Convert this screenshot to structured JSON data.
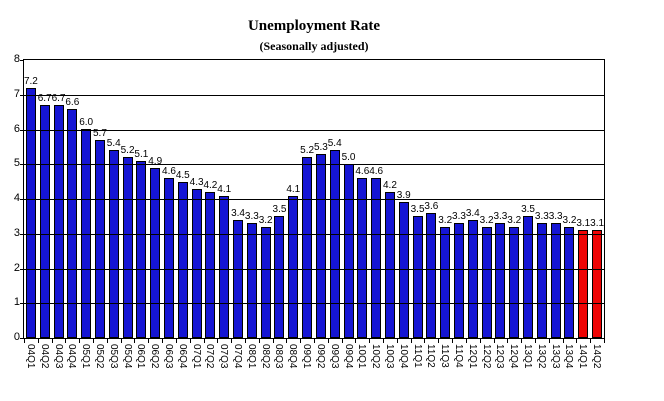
{
  "chart_data": {
    "type": "bar",
    "title": "Unemployment Rate",
    "subtitle": "(Seasonally adjusted)",
    "categories": [
      "04Q1",
      "04Q2",
      "04Q3",
      "04Q4",
      "05Q1",
      "05Q2",
      "05Q3",
      "05Q4",
      "06Q1",
      "06Q2",
      "06Q3",
      "06Q4",
      "07Q1",
      "07Q2",
      "07Q3",
      "07Q4",
      "08Q1",
      "08Q2",
      "08Q3",
      "08Q4",
      "09Q1",
      "09Q2",
      "09Q3",
      "09Q4",
      "10Q1",
      "10Q2",
      "10Q3",
      "10Q4",
      "11Q1",
      "11Q2",
      "11Q3",
      "11Q4",
      "12Q1",
      "12Q2",
      "12Q3",
      "12Q4",
      "13Q1",
      "13Q2",
      "13Q3",
      "13Q4",
      "14Q1",
      "14Q2"
    ],
    "values": [
      7.2,
      6.7,
      6.7,
      6.6,
      6.0,
      5.7,
      5.4,
      5.2,
      5.1,
      4.9,
      4.6,
      4.5,
      4.3,
      4.2,
      4.1,
      3.4,
      3.3,
      3.2,
      3.5,
      4.1,
      5.2,
      5.3,
      5.4,
      5.0,
      4.6,
      4.6,
      4.2,
      3.9,
      3.5,
      3.6,
      3.2,
      3.3,
      3.4,
      3.2,
      3.3,
      3.2,
      3.5,
      3.3,
      3.3,
      3.2,
      3.1,
      3.1
    ],
    "value_labels_visible": true,
    "value_label_decimals": 1,
    "ylim": [
      0,
      8
    ],
    "yticks": [
      0,
      1,
      2,
      3,
      4,
      5,
      6,
      7,
      8
    ],
    "xlabel": "",
    "ylabel": "",
    "grid": "horizontal",
    "gridlines_over_bars": true,
    "legend_position": "none",
    "x_labels_rotated_deg": 90,
    "highlighted_categories": [
      "14Q1",
      "14Q2"
    ],
    "colors": {
      "bar_default": "#1515D4",
      "bar_highlight": "#EE0404",
      "bar_border": "#000000",
      "gridline": "#000000",
      "axis": "#000000",
      "text": "#000000",
      "background": "#FFFFFF"
    }
  }
}
